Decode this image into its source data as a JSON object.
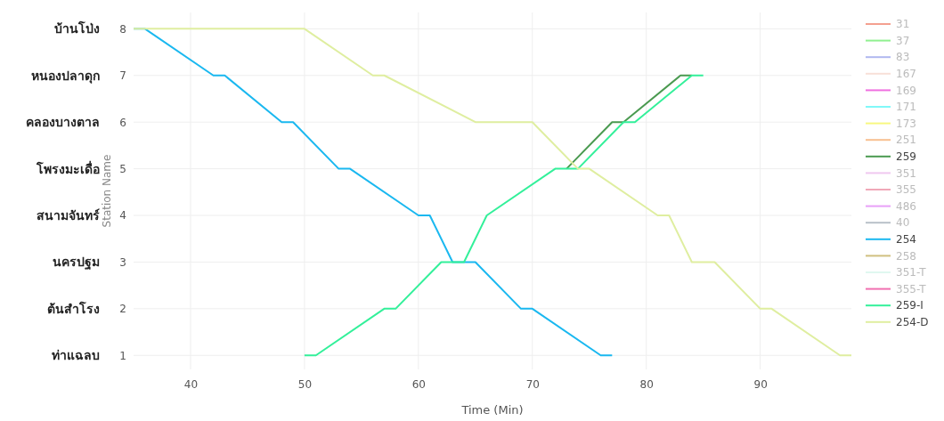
{
  "chart_data": {
    "type": "line",
    "xlabel": "Time (Min)",
    "ylabel": "Station Name",
    "xlim": [
      35,
      98
    ],
    "ylim": [
      0.7,
      8.35
    ],
    "xticks": [
      40,
      50,
      60,
      70,
      80,
      90
    ],
    "yticks": [
      1,
      2,
      3,
      4,
      5,
      6,
      7,
      8
    ],
    "grid": true,
    "legend": "right",
    "annotations": [
      "บ้านโป่ง",
      "หนองปลาดุก",
      "คลองบางตาล",
      "โพรงมะเดื่อ",
      "สนามจันทร์",
      "นครปฐม",
      "ต้นสำโรง",
      "ท่าแฉลบ"
    ],
    "series": [
      {
        "name": "31",
        "color": "#f4a090"
      },
      {
        "name": "37",
        "color": "#90f090"
      },
      {
        "name": "83",
        "color": "#b0b8f0"
      },
      {
        "name": "167",
        "color": "#f8e0d8"
      },
      {
        "name": "169",
        "color": "#f070e0"
      },
      {
        "name": "171",
        "color": "#80f8f8"
      },
      {
        "name": "173",
        "color": "#f8f880"
      },
      {
        "name": "251",
        "color": "#f8c090"
      },
      {
        "name": "259",
        "color": "#4a9a50",
        "x": [
          73,
          77,
          78,
          83,
          84
        ],
        "values": [
          5,
          6,
          6,
          7,
          7
        ]
      },
      {
        "name": "351",
        "color": "#f0c8f0"
      },
      {
        "name": "355",
        "color": "#f0a8b8"
      },
      {
        "name": "486",
        "color": "#e8a0f8"
      },
      {
        "name": "40",
        "color": "#b8c0c8"
      },
      {
        "name": "254",
        "color": "#1ab8f0",
        "x": [
          35,
          36,
          42,
          43,
          48,
          49,
          53,
          54,
          60,
          61,
          63,
          65,
          69,
          70,
          76,
          77
        ],
        "values": [
          8,
          8,
          7,
          7,
          6,
          6,
          5,
          5,
          4,
          4,
          3,
          3,
          2,
          2,
          1,
          1
        ]
      },
      {
        "name": "258",
        "color": "#d0c080"
      },
      {
        "name": "351-T",
        "color": "#e0f8f0"
      },
      {
        "name": "355-T",
        "color": "#f070b0"
      },
      {
        "name": "259-I",
        "color": "#33f09a",
        "x": [
          50,
          51,
          57,
          58,
          62,
          64,
          66,
          72,
          74,
          78,
          79,
          84,
          85
        ],
        "values": [
          1,
          1,
          2,
          2,
          3,
          3,
          4,
          5,
          5,
          6,
          6,
          7,
          7
        ]
      },
      {
        "name": "254-D",
        "color": "#dfeea0",
        "x": [
          35,
          50,
          56,
          57,
          65,
          70,
          74,
          75,
          81,
          82,
          84,
          86,
          90,
          91,
          97,
          98
        ],
        "values": [
          8,
          8,
          7,
          7,
          6,
          6,
          5,
          5,
          4,
          4,
          3,
          3,
          2,
          2,
          1,
          1
        ]
      }
    ]
  }
}
